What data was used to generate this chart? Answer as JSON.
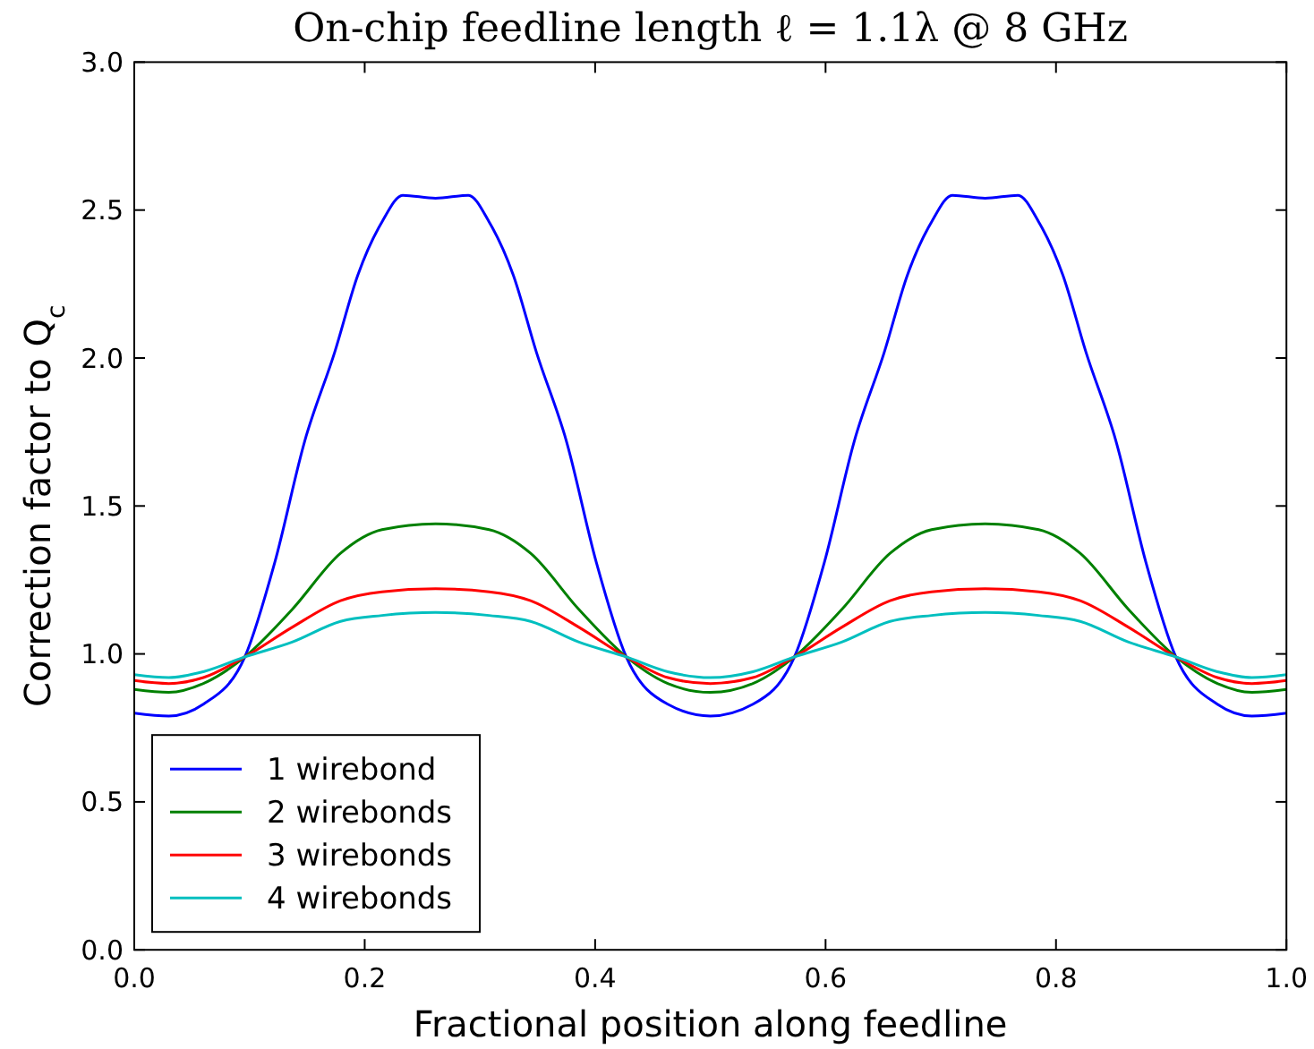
{
  "chart_data": {
    "type": "line",
    "title": "On-chip feedline length ℓ = 1.1λ @ 8 GHz",
    "xlabel": "Fractional position along feedline",
    "ylabel": "Correction factor to Q$_{c}$",
    "xlim": [
      0,
      1
    ],
    "ylim": [
      0,
      3
    ],
    "xticks": [
      {
        "value": 0,
        "label": "0.0"
      },
      0.2,
      0.4,
      0.6,
      0.8,
      {
        "value": 1,
        "label": "1.0"
      }
    ],
    "yticks": [
      {
        "value": 0,
        "label": "0.0"
      },
      0.5,
      {
        "value": 1,
        "label": "1.0"
      },
      1.5,
      {
        "value": 2,
        "label": "2.0"
      },
      2.5,
      {
        "value": 3,
        "label": "3.0"
      }
    ],
    "legend": "bottom left",
    "series": [
      {
        "name": "1 wirebond",
        "color": "#0000ff",
        "x": [
          0,
          0.03,
          0.06,
          0.096,
          0.122,
          0.148,
          0.174,
          0.194,
          0.215,
          0.233,
          0.2615,
          0.29,
          0.308,
          0.329,
          0.349,
          0.375,
          0.401,
          0.427,
          0.463,
          0.5,
          0.537,
          0.573,
          0.599,
          0.625,
          0.651,
          0.671,
          0.692,
          0.71,
          0.7385,
          0.767,
          0.785,
          0.806,
          0.826,
          0.852,
          0.878,
          0.904,
          0.94,
          0.97,
          1.0
        ],
        "values": [
          0.8,
          0.79,
          0.83,
          0.99,
          1.31,
          1.72,
          2.02,
          2.28,
          2.46,
          2.55,
          2.54,
          2.55,
          2.46,
          2.28,
          2.02,
          1.72,
          1.31,
          0.99,
          0.83,
          0.79,
          0.83,
          0.99,
          1.31,
          1.72,
          2.02,
          2.28,
          2.46,
          2.55,
          2.54,
          2.55,
          2.46,
          2.28,
          2.02,
          1.72,
          1.31,
          0.99,
          0.83,
          0.79,
          0.8
        ]
      },
      {
        "name": "2 wirebonds",
        "color": "#008000",
        "x": [
          0,
          0.03,
          0.06,
          0.096,
          0.137,
          0.179,
          0.215,
          0.2615,
          0.308,
          0.344,
          0.386,
          0.427,
          0.463,
          0.5,
          0.537,
          0.573,
          0.614,
          0.656,
          0.692,
          0.7385,
          0.785,
          0.821,
          0.863,
          0.904,
          0.94,
          0.97,
          1.0
        ],
        "values": [
          0.88,
          0.87,
          0.9,
          0.99,
          1.15,
          1.34,
          1.42,
          1.44,
          1.42,
          1.34,
          1.15,
          0.99,
          0.9,
          0.87,
          0.9,
          0.99,
          1.15,
          1.34,
          1.42,
          1.44,
          1.42,
          1.34,
          1.15,
          0.99,
          0.9,
          0.87,
          0.88
        ]
      },
      {
        "name": "3 wirebonds",
        "color": "#ff0000",
        "x": [
          0,
          0.03,
          0.06,
          0.096,
          0.137,
          0.179,
          0.215,
          0.2615,
          0.308,
          0.344,
          0.386,
          0.427,
          0.463,
          0.5,
          0.537,
          0.573,
          0.614,
          0.656,
          0.692,
          0.7385,
          0.785,
          0.821,
          0.863,
          0.904,
          0.94,
          0.97,
          1.0
        ],
        "values": [
          0.91,
          0.9,
          0.92,
          0.99,
          1.09,
          1.18,
          1.21,
          1.22,
          1.21,
          1.18,
          1.09,
          0.99,
          0.92,
          0.9,
          0.92,
          0.99,
          1.09,
          1.18,
          1.21,
          1.22,
          1.21,
          1.18,
          1.09,
          0.99,
          0.92,
          0.9,
          0.91
        ]
      },
      {
        "name": "4 wirebonds",
        "color": "#00bfbf",
        "x": [
          0,
          0.03,
          0.06,
          0.096,
          0.137,
          0.179,
          0.215,
          0.2615,
          0.308,
          0.344,
          0.386,
          0.427,
          0.463,
          0.5,
          0.537,
          0.573,
          0.614,
          0.656,
          0.692,
          0.7385,
          0.785,
          0.821,
          0.863,
          0.904,
          0.94,
          0.97,
          1.0
        ],
        "values": [
          0.93,
          0.92,
          0.94,
          0.99,
          1.04,
          1.11,
          1.13,
          1.14,
          1.13,
          1.11,
          1.04,
          0.99,
          0.94,
          0.92,
          0.94,
          0.99,
          1.04,
          1.11,
          1.13,
          1.14,
          1.13,
          1.11,
          1.04,
          0.99,
          0.94,
          0.92,
          0.93
        ]
      }
    ]
  }
}
